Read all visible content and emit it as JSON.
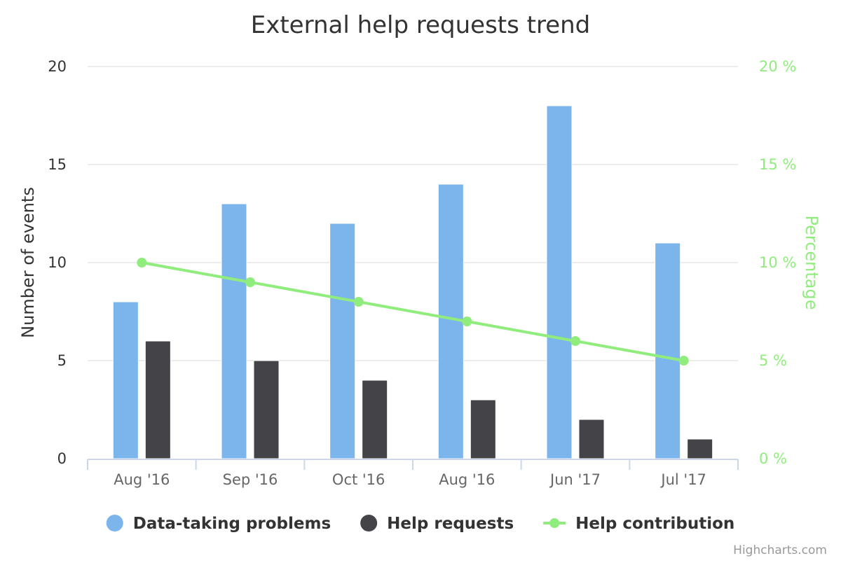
{
  "chart_data": {
    "type": "bar",
    "title": "External help requests trend",
    "categories": [
      "Aug '16",
      "Sep '16",
      "Oct '16",
      "Aug '16",
      "Jun '17",
      "Jul '17"
    ],
    "series": [
      {
        "name": "Data-taking problems",
        "type": "bar",
        "axis": "left",
        "color": "#7cb5ec",
        "values": [
          8,
          13,
          12,
          14,
          18,
          11
        ]
      },
      {
        "name": "Help requests",
        "type": "bar",
        "axis": "left",
        "color": "#434348",
        "values": [
          6,
          5,
          4,
          3,
          2,
          1
        ]
      },
      {
        "name": "Help contribution",
        "type": "line",
        "axis": "right",
        "color": "#90ed7d",
        "values": [
          10,
          9,
          8,
          7,
          6,
          5
        ]
      }
    ],
    "yaxis_left": {
      "label": "Number of events",
      "range": [
        0,
        20
      ],
      "ticks": [
        "0",
        "5",
        "10",
        "15",
        "20"
      ]
    },
    "yaxis_right": {
      "label": "Percentage",
      "range": [
        0,
        20
      ],
      "ticks": [
        "0 %",
        "5 %",
        "10 %",
        "15 %",
        "20 %"
      ]
    },
    "grid": true,
    "legend_position": "bottom-center"
  },
  "credits": "Highcharts.com"
}
